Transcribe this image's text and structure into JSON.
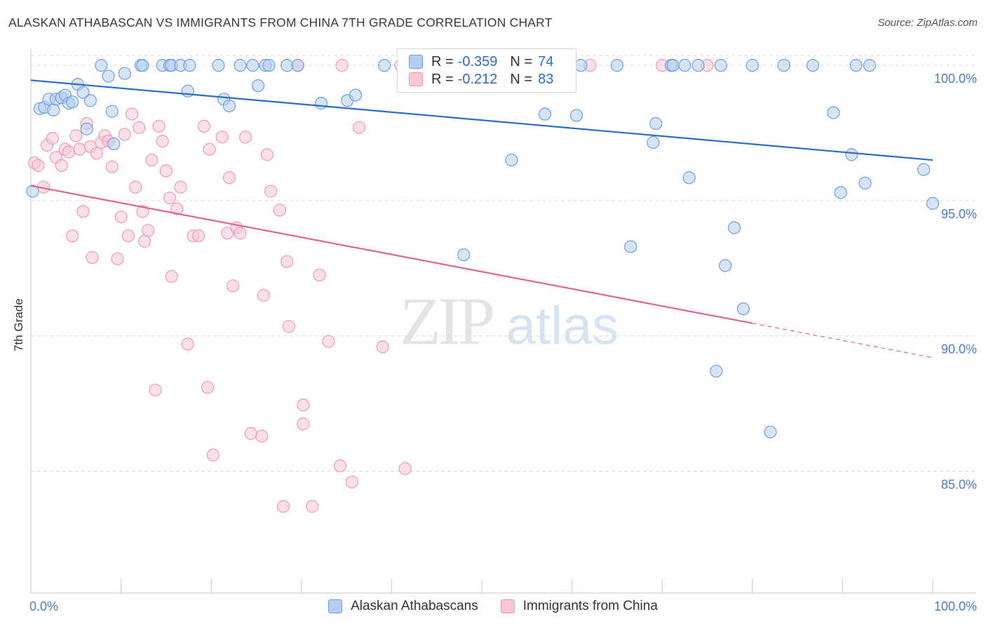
{
  "title": "ALASKAN ATHABASCAN VS IMMIGRANTS FROM CHINA 7TH GRADE CORRELATION CHART",
  "source": "Source: ZipAtlas.com",
  "watermark": {
    "zip": "ZIP",
    "atlas": "atlas"
  },
  "legend": {
    "r_label": "R =",
    "n_label": "N =",
    "rows": [
      {
        "r": "-0.359",
        "n": "74"
      },
      {
        "r": "-0.212",
        "n": "83"
      }
    ]
  },
  "colors": {
    "blue_stroke": "#6f9fde",
    "blue_fill": "#b5cdf0",
    "blue_line": "#2b6cc8",
    "pink_stroke": "#ef9ab4",
    "pink_fill": "#f8c7d5",
    "pink_line": "#e2648e",
    "tick_label": "#4a7cc9",
    "grid": "#dcdcdc"
  },
  "chart_data": {
    "type": "scatter",
    "title": "ALASKAN ATHABASCAN VS IMMIGRANTS FROM CHINA 7TH GRADE CORRELATION CHART",
    "xlabel": "",
    "ylabel": "7th Grade",
    "xlim": [
      0,
      100
    ],
    "ylim": [
      80.5,
      100.6
    ],
    "x_tick_labels": [
      "0.0%",
      "100.0%"
    ],
    "y_ticks": [
      85,
      90,
      95,
      100
    ],
    "y_tick_labels": [
      "85.0%",
      "90.0%",
      "95.0%",
      "100.0%"
    ],
    "grid": true,
    "legend_position": "bottom-center",
    "series": [
      {
        "name": "Alaskan Athabascans",
        "color": "#6f9fde",
        "trend": {
          "x": [
            0,
            100
          ],
          "y": [
            99.45,
            96.5
          ],
          "dashed_from": null
        },
        "points": [
          [
            0.2,
            95.35
          ],
          [
            1.0,
            98.4
          ],
          [
            1.5,
            98.45
          ],
          [
            2.0,
            98.75
          ],
          [
            2.5,
            98.35
          ],
          [
            2.8,
            98.75
          ],
          [
            3.4,
            98.8
          ],
          [
            3.8,
            98.9
          ],
          [
            4.2,
            98.6
          ],
          [
            4.6,
            98.65
          ],
          [
            5.2,
            99.3
          ],
          [
            5.8,
            99.0
          ],
          [
            6.2,
            97.65
          ],
          [
            6.6,
            98.7
          ],
          [
            7.8,
            100.0
          ],
          [
            8.6,
            99.6
          ],
          [
            9.0,
            98.3
          ],
          [
            9.2,
            97.1
          ],
          [
            10.4,
            99.7
          ],
          [
            12.2,
            100.0
          ],
          [
            12.4,
            100.0
          ],
          [
            14.6,
            100.0
          ],
          [
            15.4,
            100.0
          ],
          [
            15.6,
            100.0
          ],
          [
            16.6,
            100.0
          ],
          [
            17.4,
            99.05
          ],
          [
            17.6,
            100.0
          ],
          [
            20.8,
            100.0
          ],
          [
            21.4,
            98.75
          ],
          [
            22.0,
            98.5
          ],
          [
            23.2,
            100.0
          ],
          [
            24.6,
            100.0
          ],
          [
            25.2,
            99.25
          ],
          [
            26.0,
            100.0
          ],
          [
            26.4,
            100.0
          ],
          [
            28.4,
            100.0
          ],
          [
            29.6,
            100.0
          ],
          [
            32.2,
            98.6
          ],
          [
            35.1,
            98.7
          ],
          [
            36.0,
            98.9
          ],
          [
            39.2,
            100.0
          ],
          [
            48.0,
            93.0
          ],
          [
            53.0,
            100.0
          ],
          [
            53.3,
            96.5
          ],
          [
            57.0,
            98.2
          ],
          [
            57.5,
            100.0
          ],
          [
            60.5,
            98.15
          ],
          [
            61.0,
            100.0
          ],
          [
            65.0,
            100.0
          ],
          [
            66.5,
            93.3
          ],
          [
            69.0,
            97.15
          ],
          [
            69.3,
            97.85
          ],
          [
            71.0,
            100.0
          ],
          [
            71.2,
            100.0
          ],
          [
            72.5,
            100.0
          ],
          [
            73.0,
            95.85
          ],
          [
            74.0,
            100.0
          ],
          [
            76.0,
            88.7
          ],
          [
            76.5,
            100.0
          ],
          [
            77.0,
            92.6
          ],
          [
            78.0,
            94.0
          ],
          [
            79.0,
            91.0
          ],
          [
            80.0,
            100.0
          ],
          [
            82.0,
            86.45
          ],
          [
            83.5,
            100.0
          ],
          [
            86.7,
            100.0
          ],
          [
            89.0,
            98.25
          ],
          [
            89.8,
            95.3
          ],
          [
            91.0,
            96.7
          ],
          [
            91.5,
            100.0
          ],
          [
            92.5,
            95.65
          ],
          [
            93.0,
            100.0
          ],
          [
            99.0,
            96.15
          ],
          [
            100.0,
            94.9
          ]
        ]
      },
      {
        "name": "Immigrants from China",
        "color": "#ef9ab4",
        "trend": {
          "x": [
            0,
            100
          ],
          "y": [
            95.55,
            89.2
          ],
          "dashed_from": 80
        },
        "points": [
          [
            0.4,
            96.4
          ],
          [
            0.8,
            96.3
          ],
          [
            1.4,
            95.5
          ],
          [
            1.8,
            97.05
          ],
          [
            2.4,
            97.3
          ],
          [
            2.8,
            96.6
          ],
          [
            3.4,
            96.3
          ],
          [
            3.8,
            96.9
          ],
          [
            4.2,
            96.8
          ],
          [
            4.6,
            93.7
          ],
          [
            5.0,
            97.4
          ],
          [
            5.4,
            96.9
          ],
          [
            5.8,
            94.6
          ],
          [
            6.2,
            97.85
          ],
          [
            6.6,
            97.0
          ],
          [
            6.8,
            92.9
          ],
          [
            7.3,
            96.75
          ],
          [
            7.8,
            97.15
          ],
          [
            8.2,
            97.4
          ],
          [
            8.6,
            97.2
          ],
          [
            9.0,
            96.25
          ],
          [
            9.6,
            92.85
          ],
          [
            10.0,
            94.4
          ],
          [
            10.4,
            97.45
          ],
          [
            10.8,
            93.7
          ],
          [
            11.2,
            98.2
          ],
          [
            11.6,
            95.5
          ],
          [
            12.0,
            97.7
          ],
          [
            12.4,
            94.6
          ],
          [
            12.6,
            93.5
          ],
          [
            13.0,
            93.9
          ],
          [
            13.4,
            96.5
          ],
          [
            13.8,
            88.0
          ],
          [
            14.2,
            97.75
          ],
          [
            14.6,
            97.2
          ],
          [
            15.0,
            96.1
          ],
          [
            15.4,
            95.1
          ],
          [
            15.6,
            92.2
          ],
          [
            16.2,
            94.7
          ],
          [
            16.6,
            95.5
          ],
          [
            17.4,
            89.7
          ],
          [
            18.0,
            93.7
          ],
          [
            18.6,
            93.7
          ],
          [
            19.2,
            97.75
          ],
          [
            19.6,
            88.1
          ],
          [
            19.8,
            96.9
          ],
          [
            20.2,
            85.6
          ],
          [
            21.2,
            97.35
          ],
          [
            21.8,
            93.8
          ],
          [
            22.0,
            95.85
          ],
          [
            22.4,
            91.85
          ],
          [
            22.8,
            94.0
          ],
          [
            23.2,
            93.8
          ],
          [
            23.8,
            97.35
          ],
          [
            24.4,
            86.4
          ],
          [
            25.6,
            86.3
          ],
          [
            25.8,
            91.5
          ],
          [
            26.2,
            96.7
          ],
          [
            26.6,
            95.35
          ],
          [
            27.6,
            94.65
          ],
          [
            28.0,
            83.7
          ],
          [
            28.4,
            92.75
          ],
          [
            28.6,
            90.35
          ],
          [
            29.6,
            100.0
          ],
          [
            30.2,
            87.45
          ],
          [
            30.2,
            86.75
          ],
          [
            31.2,
            83.7
          ],
          [
            32.0,
            92.25
          ],
          [
            33.0,
            89.8
          ],
          [
            34.3,
            85.2
          ],
          [
            34.5,
            100.0
          ],
          [
            35.6,
            84.6
          ],
          [
            36.4,
            97.7
          ],
          [
            39.0,
            89.6
          ],
          [
            41.0,
            100.0
          ],
          [
            41.5,
            85.1
          ],
          [
            43.0,
            100.0
          ],
          [
            46.0,
            99.8
          ],
          [
            50.0,
            100.0
          ],
          [
            55.0,
            100.0
          ],
          [
            62.0,
            100.0
          ],
          [
            70.0,
            100.0
          ],
          [
            75.0,
            100.0
          ]
        ]
      }
    ]
  }
}
